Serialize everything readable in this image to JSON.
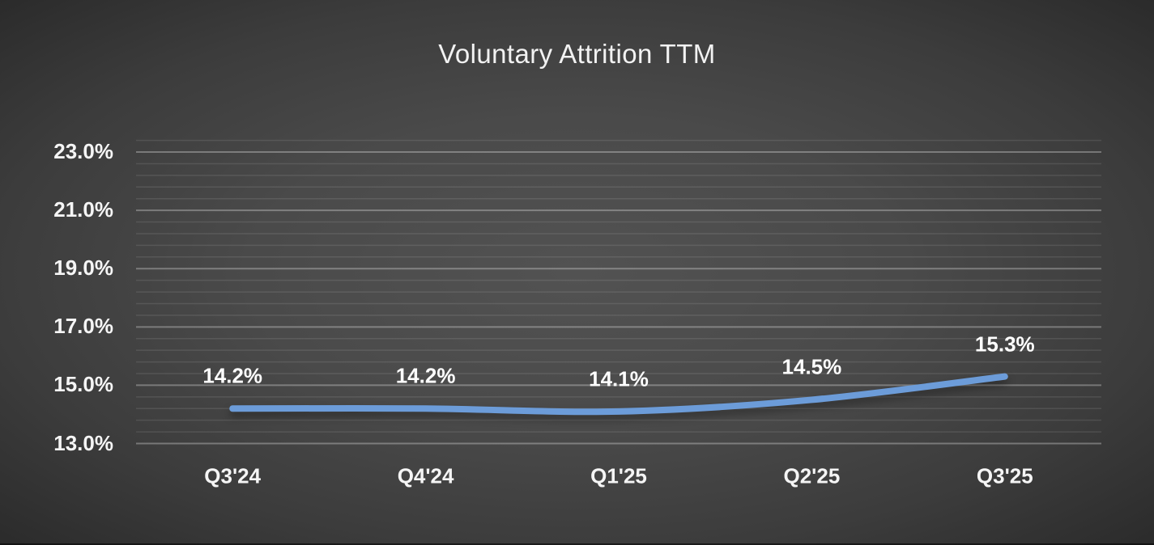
{
  "title": "Voluntary Attrition TTM",
  "colors": {
    "background_center": "#4a4a4a",
    "background_edge": "#2b2b2b",
    "line": "#6C9CD9",
    "text": "#f2f2f2",
    "major_gridline": "rgba(255,255,255,0.30)",
    "minor_gridline": "rgba(255,255,255,0.10)"
  },
  "chart_data": {
    "type": "line",
    "title": "Voluntary Attrition TTM",
    "categories": [
      "Q3'24",
      "Q4'24",
      "Q1'25",
      "Q2'25",
      "Q3'25"
    ],
    "values": [
      14.2,
      14.2,
      14.1,
      14.5,
      15.3
    ],
    "data_labels": [
      "14.2%",
      "14.2%",
      "14.1%",
      "14.5%",
      "15.3%"
    ],
    "xlabel": "",
    "ylabel": "",
    "ylim": [
      13.0,
      24.0
    ],
    "y_major_tick_values": [
      23,
      21,
      19,
      17,
      15,
      13
    ],
    "y_major_tick_labels": [
      "23.0%",
      "21.0%",
      "19.0%",
      "17.0%",
      "15.0%",
      "13.0%"
    ],
    "y_minor_step": 0.4,
    "grid": "horizontal-minor-and-major",
    "legend": "none",
    "smoothed": true
  }
}
